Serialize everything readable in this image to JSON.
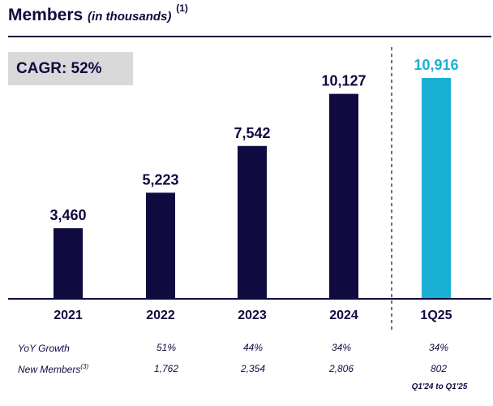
{
  "header": {
    "title": "Members",
    "subtitle": "(in thousands)",
    "footnote_marker": "(1)"
  },
  "cagr": {
    "label": "CAGR: 52%"
  },
  "colors": {
    "primary_bar": "#0f0a3f",
    "highlight_bar": "#19b0d4",
    "text": "#0f0a3f",
    "cagr_bg": "#d9d9d9"
  },
  "chart_data": {
    "type": "bar",
    "title": "Members (in thousands)",
    "categories": [
      "2021",
      "2022",
      "2023",
      "2024",
      "1Q25"
    ],
    "values": [
      3460,
      5223,
      7542,
      10127,
      10916
    ],
    "value_labels": [
      "3,460",
      "5,223",
      "7,542",
      "10,127",
      "10,916"
    ],
    "highlight_index": 4,
    "ylim": [
      0,
      11000
    ],
    "grid": false,
    "xlabel": "",
    "ylabel": ""
  },
  "table": {
    "rows": [
      {
        "label": "YoY Growth",
        "footnote": "",
        "values": [
          "51%",
          "44%",
          "34%",
          "34%"
        ]
      },
      {
        "label": "New Members",
        "footnote": "(3)",
        "values": [
          "1,762",
          "2,354",
          "2,806",
          "802"
        ]
      }
    ],
    "period_note": "Q1'24 to Q1'25"
  }
}
